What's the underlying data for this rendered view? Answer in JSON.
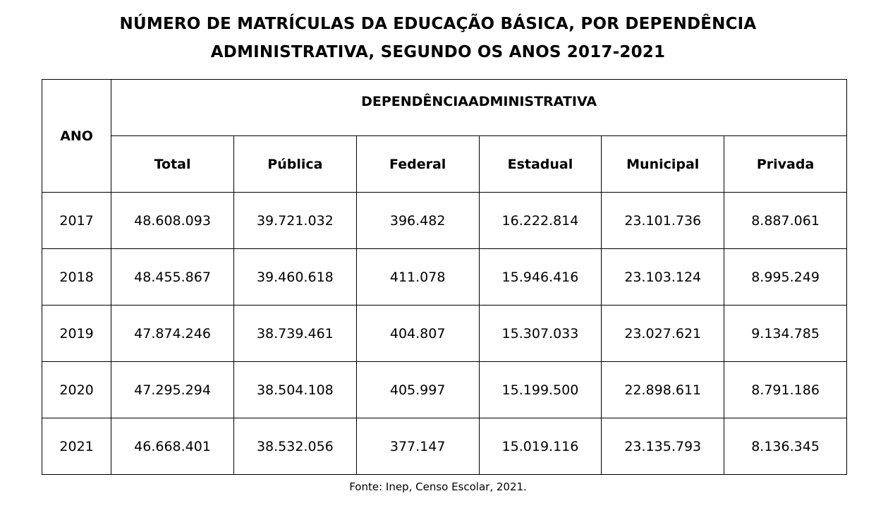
{
  "title": {
    "line1": "NÚMERO DE MATRÍCULAS DA EDUCAÇÃO BÁSICA, POR DEPENDÊNCIA",
    "line2": "ADMINISTRATIVA, SEGUNDO OS ANOS 2017-2021"
  },
  "table": {
    "year_header": "ANO",
    "group_header": "DEPENDÊNCIAADMINISTRATIVA",
    "columns": [
      "Total",
      "Pública",
      "Federal",
      "Estadual",
      "Municipal",
      "Privada"
    ],
    "rows": [
      {
        "year": "2017",
        "values": [
          "48.608.093",
          "39.721.032",
          "396.482",
          "16.222.814",
          "23.101.736",
          "8.887.061"
        ]
      },
      {
        "year": "2018",
        "values": [
          "48.455.867",
          "39.460.618",
          "411.078",
          "15.946.416",
          "23.103.124",
          "8.995.249"
        ]
      },
      {
        "year": "2019",
        "values": [
          "47.874.246",
          "38.739.461",
          "404.807",
          "15.307.033",
          "23.027.621",
          "9.134.785"
        ]
      },
      {
        "year": "2020",
        "values": [
          "47.295.294",
          "38.504.108",
          "405.997",
          "15.199.500",
          "22.898.611",
          "8.791.186"
        ]
      },
      {
        "year": "2021",
        "values": [
          "46.668.401",
          "38.532.056",
          "377.147",
          "15.019.116",
          "23.135.793",
          "8.136.345"
        ]
      }
    ]
  },
  "source": "Fonte: Inep, Censo Escolar, 2021."
}
